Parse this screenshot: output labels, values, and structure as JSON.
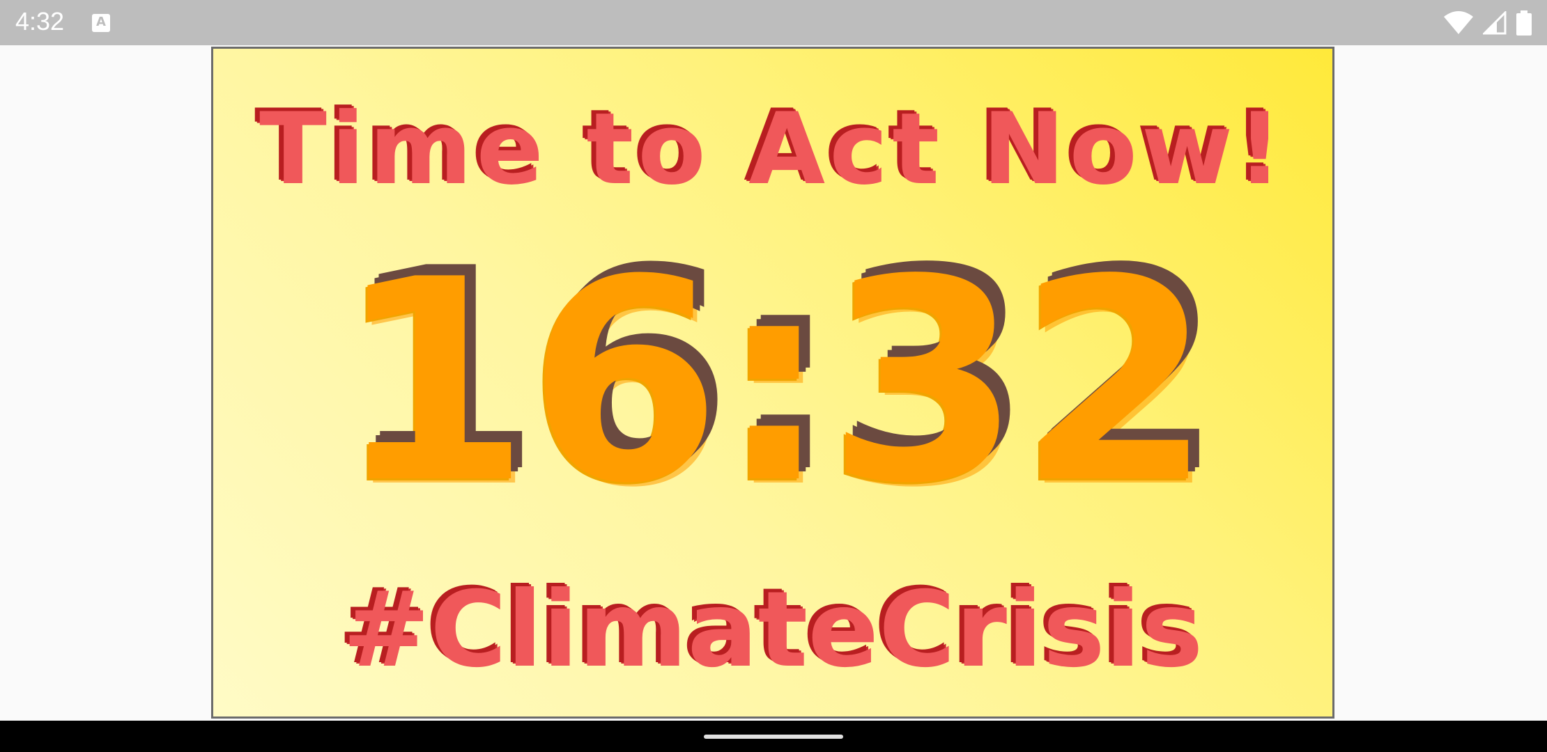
{
  "status_bar": {
    "time": "4:32",
    "notification_icon": "A",
    "icons": [
      "wifi-icon",
      "cell-signal-icon",
      "battery-icon"
    ]
  },
  "poster": {
    "headline": "Time to Act Now!",
    "clock": "16:32",
    "hashtag": "#ClimateCrisis"
  },
  "colors": {
    "status_bar": "#bdbdbd",
    "headline_red": "#f0585a",
    "shadow_dark_red": "#b81e20",
    "clock_orange": "#ff9d00",
    "clock_shadow": "#6b4a40",
    "poster_yellow": "#ffe93a"
  }
}
